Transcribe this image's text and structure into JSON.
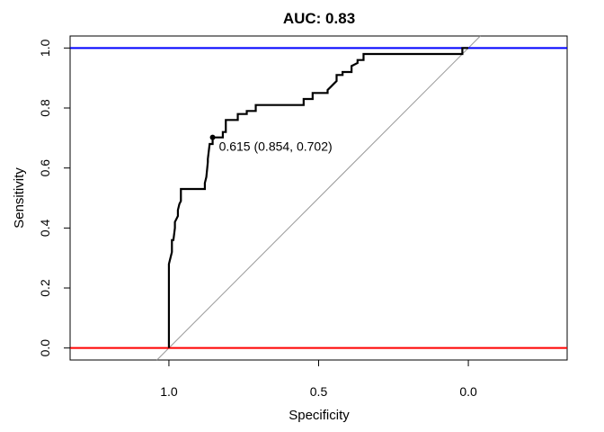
{
  "chart_data": {
    "type": "line",
    "title": "AUC: 0.83",
    "xlabel": "Specificity",
    "ylabel": "Sensitivity",
    "x_reversed": true,
    "xlim": [
      1.33,
      -0.33
    ],
    "ylim": [
      -0.04,
      1.04
    ],
    "xticks": [
      1.0,
      0.5,
      0.0
    ],
    "xtick_labels": [
      "1.0",
      "0.5",
      "0.0"
    ],
    "yticks": [
      0.0,
      0.2,
      0.4,
      0.6,
      0.8,
      1.0
    ],
    "ytick_labels": [
      "0.0",
      "0.2",
      "0.4",
      "0.6",
      "0.8",
      "1.0"
    ],
    "grid": false,
    "roc_curve": {
      "specificity": [
        1.0,
        1.0,
        1.0,
        0.995,
        0.99,
        0.99,
        0.985,
        0.98,
        0.98,
        0.975,
        0.97,
        0.97,
        0.965,
        0.96,
        0.96,
        0.95,
        0.95,
        0.88,
        0.88,
        0.875,
        0.87,
        0.87,
        0.864,
        0.854,
        0.854,
        0.84,
        0.82,
        0.82,
        0.81,
        0.81,
        0.77,
        0.77,
        0.74,
        0.74,
        0.71,
        0.71,
        0.55,
        0.55,
        0.52,
        0.52,
        0.47,
        0.47,
        0.46,
        0.45,
        0.44,
        0.44,
        0.42,
        0.42,
        0.39,
        0.39,
        0.37,
        0.37,
        0.35,
        0.35,
        0.02,
        0.02,
        0.0
      ],
      "sensitivity": [
        0.0,
        0.27,
        0.28,
        0.3,
        0.32,
        0.36,
        0.36,
        0.4,
        0.42,
        0.43,
        0.44,
        0.46,
        0.48,
        0.49,
        0.53,
        0.53,
        0.53,
        0.53,
        0.55,
        0.57,
        0.62,
        0.63,
        0.68,
        0.68,
        0.702,
        0.702,
        0.702,
        0.72,
        0.72,
        0.76,
        0.76,
        0.78,
        0.78,
        0.79,
        0.79,
        0.81,
        0.81,
        0.83,
        0.83,
        0.85,
        0.85,
        0.86,
        0.87,
        0.88,
        0.89,
        0.91,
        0.91,
        0.92,
        0.92,
        0.94,
        0.95,
        0.96,
        0.96,
        0.98,
        0.98,
        1.0,
        1.0
      ]
    },
    "diagonal": {
      "specificity": [
        1.0,
        0.0
      ],
      "sensitivity": [
        0.0,
        1.0
      ],
      "color": "#999999"
    },
    "hlines": [
      {
        "y": 1.0,
        "color": "#0000ff"
      },
      {
        "y": 0.0,
        "color": "#ff0000"
      }
    ],
    "best_point": {
      "specificity": 0.854,
      "sensitivity": 0.702,
      "label": "0.615 (0.854, 0.702)"
    },
    "line_color": "#000000"
  }
}
